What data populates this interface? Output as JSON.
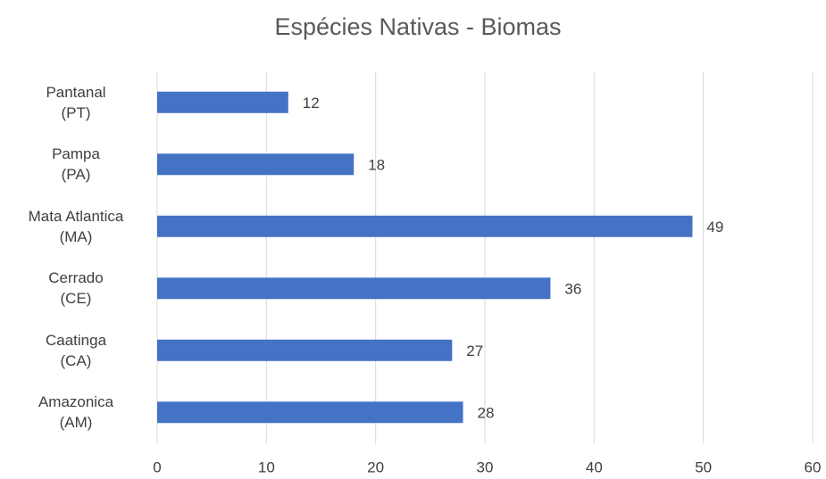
{
  "chart_data": {
    "type": "bar",
    "orientation": "horizontal",
    "title": "Espécies Nativas -  Biomas",
    "categories": [
      "Pantanal\n(PT)",
      "Pampa\n(PA)",
      "Mata Atlantica\n(MA)",
      "Cerrado\n(CE)",
      "Caatinga\n(CA)",
      "Amazonica\n(AM)"
    ],
    "values": [
      12,
      18,
      49,
      36,
      27,
      28
    ],
    "color": "#4472c4",
    "xlim": [
      0,
      60
    ],
    "xticks": [
      0,
      10,
      20,
      30,
      40,
      50,
      60
    ],
    "grid": true
  }
}
